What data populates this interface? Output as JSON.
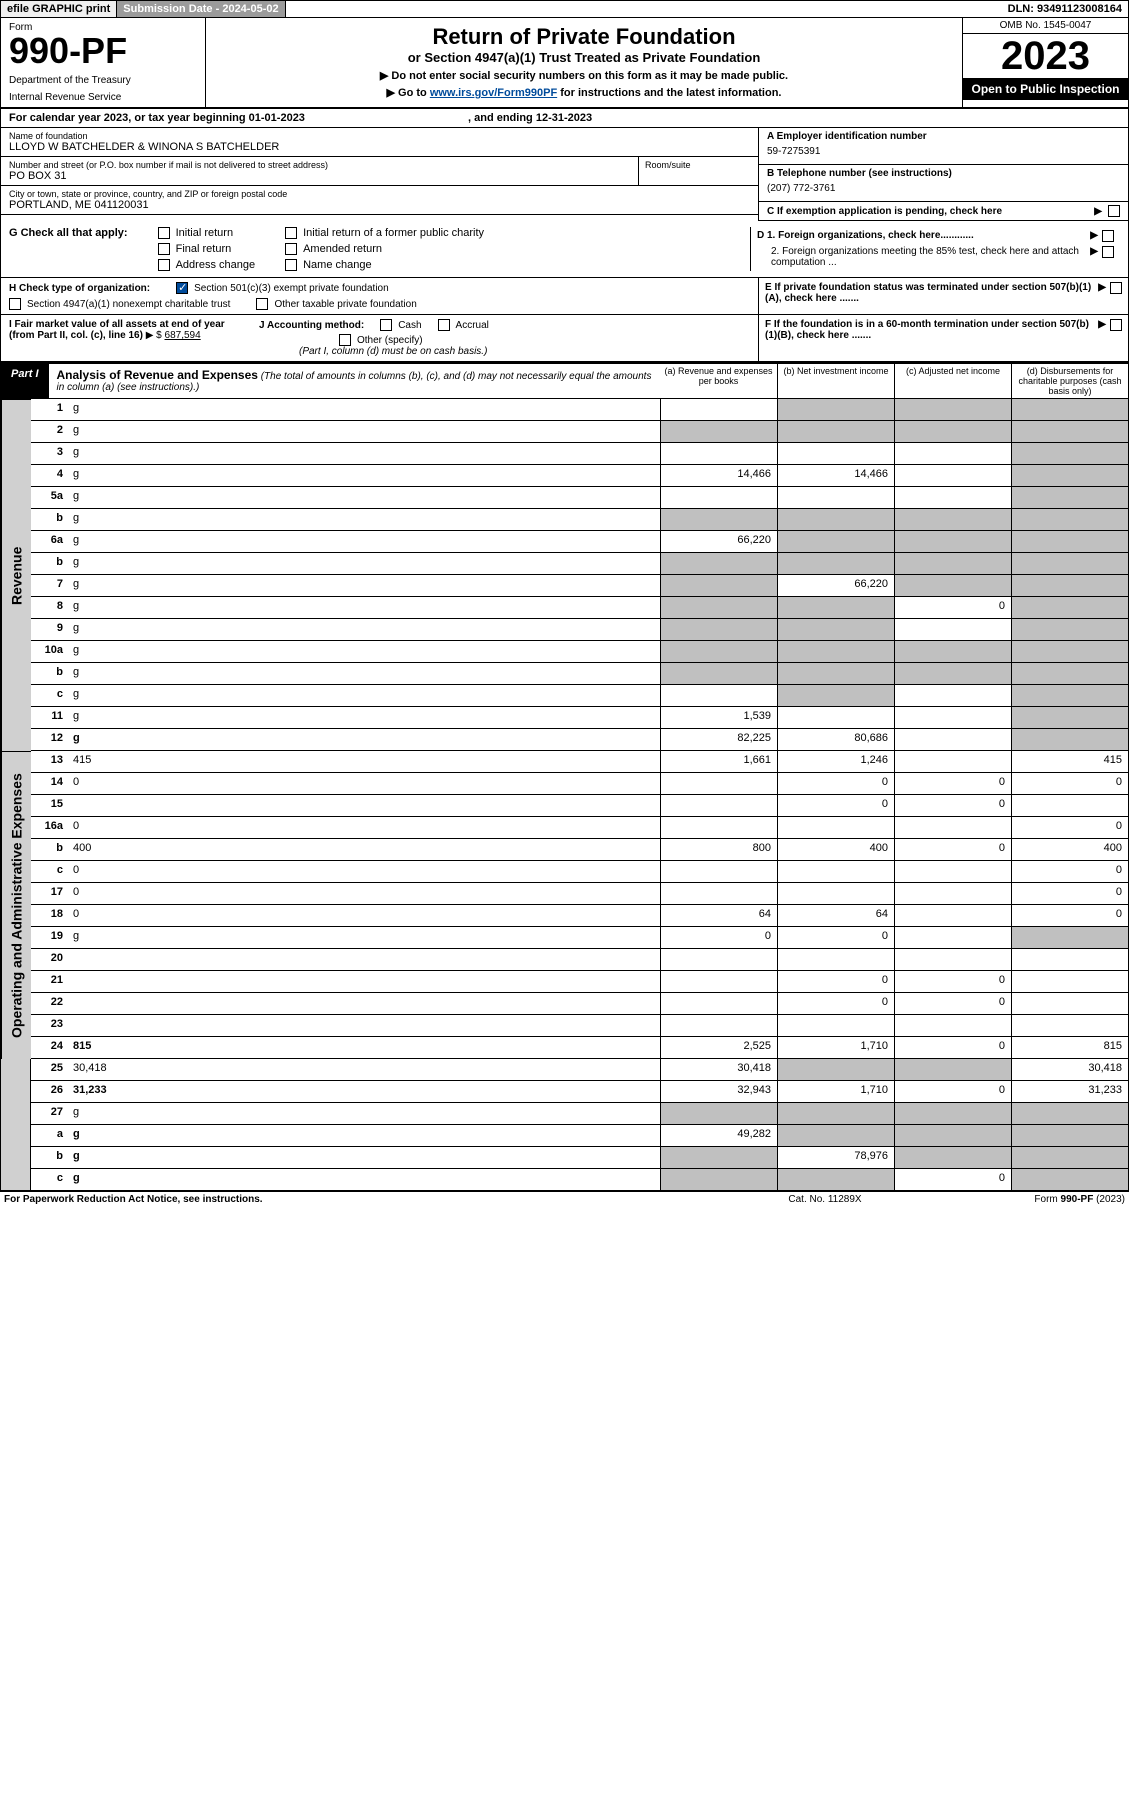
{
  "topbar": {
    "efile": "efile GRAPHIC print",
    "subdate_label": "Submission Date - ",
    "subdate": "2024-05-02",
    "dln_label": "DLN: ",
    "dln": "93491123008164"
  },
  "header": {
    "form_word": "Form",
    "form_num": "990-PF",
    "dept": "Department of the Treasury",
    "irs": "Internal Revenue Service",
    "title": "Return of Private Foundation",
    "subtitle": "or Section 4947(a)(1) Trust Treated as Private Foundation",
    "instr1": "▶ Do not enter social security numbers on this form as it may be made public.",
    "instr2_pre": "▶ Go to ",
    "instr2_link": "www.irs.gov/Form990PF",
    "instr2_post": " for instructions and the latest information.",
    "omb": "OMB No. 1545-0047",
    "year": "2023",
    "open": "Open to Public Inspection"
  },
  "calyear": {
    "pre": "For calendar year 2023, or tax year beginning ",
    "begin": "01-01-2023",
    "mid": " , and ending ",
    "end": "12-31-2023"
  },
  "info": {
    "name_label": "Name of foundation",
    "name": "LLOYD W BATCHELDER & WINONA S BATCHELDER",
    "addr_label": "Number and street (or P.O. box number if mail is not delivered to street address)",
    "addr": "PO BOX 31",
    "room_label": "Room/suite",
    "city_label": "City or town, state or province, country, and ZIP or foreign postal code",
    "city": "PORTLAND, ME  041120031",
    "a_label": "A Employer identification number",
    "a_val": "59-7275391",
    "b_label": "B Telephone number (see instructions)",
    "b_val": "(207) 772-3761",
    "c_label": "C If exemption application is pending, check here",
    "d1": "D 1. Foreign organizations, check here............",
    "d2": "2. Foreign organizations meeting the 85% test, check here and attach computation ...",
    "e": "E  If private foundation status was terminated under section 507(b)(1)(A), check here .......",
    "f": "F  If the foundation is in a 60-month termination under section 507(b)(1)(B), check here .......",
    "g_label": "G Check all that apply:",
    "g_initial": "Initial return",
    "g_initial_former": "Initial return of a former public charity",
    "g_final": "Final return",
    "g_amended": "Amended return",
    "g_addr": "Address change",
    "g_name": "Name change",
    "h_label": "H Check type of organization:",
    "h_501": "Section 501(c)(3) exempt private foundation",
    "h_4947": "Section 4947(a)(1) nonexempt charitable trust",
    "h_other": "Other taxable private foundation",
    "i_label": "I Fair market value of all assets at end of year (from Part II, col. (c), line 16)",
    "i_arrow": "▶ $",
    "i_val": "687,594",
    "j_label": "J Accounting method:",
    "j_cash": "Cash",
    "j_accrual": "Accrual",
    "j_other": "Other (specify)",
    "j_note": "(Part I, column (d) must be on cash basis.)"
  },
  "part1": {
    "label": "Part I",
    "title": "Analysis of Revenue and Expenses",
    "title_note": "(The total of amounts in columns (b), (c), and (d) may not necessarily equal the amounts in column (a) (see instructions).)",
    "col_a": "(a)  Revenue and expenses per books",
    "col_b": "(b)  Net investment income",
    "col_c": "(c)  Adjusted net income",
    "col_d": "(d)  Disbursements for charitable purposes (cash basis only)"
  },
  "sides": {
    "revenue": "Revenue",
    "opex": "Operating and Administrative Expenses"
  },
  "rows": [
    {
      "n": "1",
      "d": "g",
      "a": "",
      "b": "g",
      "c": "g"
    },
    {
      "n": "2",
      "d": "g",
      "dots": true,
      "a": "g",
      "b": "g",
      "c": "g"
    },
    {
      "n": "3",
      "d": "g",
      "a": "",
      "b": "",
      "c": ""
    },
    {
      "n": "4",
      "d": "g",
      "dots": true,
      "a": "14,466",
      "b": "14,466",
      "c": ""
    },
    {
      "n": "5a",
      "d": "g",
      "dots": true,
      "a": "",
      "b": "",
      "c": ""
    },
    {
      "n": "b",
      "d": "g",
      "a": "g",
      "b": "g",
      "c": "g"
    },
    {
      "n": "6a",
      "d": "g",
      "a": "66,220",
      "b": "g",
      "c": "g"
    },
    {
      "n": "b",
      "d": "g",
      "a": "g",
      "b": "g",
      "c": "g"
    },
    {
      "n": "7",
      "d": "g",
      "dots": true,
      "a": "g",
      "b": "66,220",
      "c": "g"
    },
    {
      "n": "8",
      "d": "g",
      "dots": true,
      "a": "g",
      "b": "g",
      "c": "0"
    },
    {
      "n": "9",
      "d": "g",
      "dots": true,
      "a": "g",
      "b": "g",
      "c": ""
    },
    {
      "n": "10a",
      "d": "g",
      "a": "g",
      "b": "g",
      "c": "g"
    },
    {
      "n": "b",
      "d": "g",
      "dots": true,
      "a": "g",
      "b": "g",
      "c": "g"
    },
    {
      "n": "c",
      "d": "g",
      "dots": true,
      "a": "",
      "b": "g",
      "c": ""
    },
    {
      "n": "11",
      "d": "g",
      "dots": true,
      "a": "1,539",
      "b": "",
      "c": ""
    },
    {
      "n": "12",
      "d": "g",
      "bold": true,
      "dots": true,
      "a": "82,225",
      "b": "80,686",
      "c": ""
    },
    {
      "n": "13",
      "d": "415",
      "a": "1,661",
      "b": "1,246",
      "c": ""
    },
    {
      "n": "14",
      "d": "0",
      "dots": true,
      "a": "",
      "b": "0",
      "c": "0"
    },
    {
      "n": "15",
      "d": "",
      "dots": true,
      "a": "",
      "b": "0",
      "c": "0"
    },
    {
      "n": "16a",
      "d": "0",
      "dots": true,
      "a": "",
      "b": "",
      "c": ""
    },
    {
      "n": "b",
      "d": "400",
      "dots": true,
      "a": "800",
      "b": "400",
      "c": "0"
    },
    {
      "n": "c",
      "d": "0",
      "dots": true,
      "a": "",
      "b": "",
      "c": ""
    },
    {
      "n": "17",
      "d": "0",
      "dots": true,
      "a": "",
      "b": "",
      "c": ""
    },
    {
      "n": "18",
      "d": "0",
      "dots": true,
      "a": "64",
      "b": "64",
      "c": ""
    },
    {
      "n": "19",
      "d": "g",
      "dots": true,
      "a": "0",
      "b": "0",
      "c": ""
    },
    {
      "n": "20",
      "d": "",
      "dots": true,
      "a": "",
      "b": "",
      "c": ""
    },
    {
      "n": "21",
      "d": "",
      "dots": true,
      "a": "",
      "b": "0",
      "c": "0"
    },
    {
      "n": "22",
      "d": "",
      "dots": true,
      "a": "",
      "b": "0",
      "c": "0"
    },
    {
      "n": "23",
      "d": "",
      "dots": true,
      "a": "",
      "b": "",
      "c": ""
    },
    {
      "n": "24",
      "d": "815",
      "bold": true,
      "dots": true,
      "a": "2,525",
      "b": "1,710",
      "c": "0"
    },
    {
      "n": "25",
      "d": "30,418",
      "dots": true,
      "a": "30,418",
      "b": "g",
      "c": "g"
    },
    {
      "n": "26",
      "d": "31,233",
      "bold": true,
      "a": "32,943",
      "b": "1,710",
      "c": "0"
    },
    {
      "n": "27",
      "d": "g",
      "a": "g",
      "b": "g",
      "c": "g"
    },
    {
      "n": "a",
      "d": "g",
      "bold": true,
      "a": "49,282",
      "b": "g",
      "c": "g"
    },
    {
      "n": "b",
      "d": "g",
      "bold": true,
      "a": "g",
      "b": "78,976",
      "c": "g"
    },
    {
      "n": "c",
      "d": "g",
      "bold": true,
      "dots": true,
      "a": "g",
      "b": "g",
      "c": "0"
    }
  ],
  "footer": {
    "left": "For Paperwork Reduction Act Notice, see instructions.",
    "mid": "Cat. No. 11289X",
    "right": "Form 990-PF (2023)"
  },
  "colors": {
    "grey_cell": "#c0c0c0",
    "link": "#004b9b"
  }
}
